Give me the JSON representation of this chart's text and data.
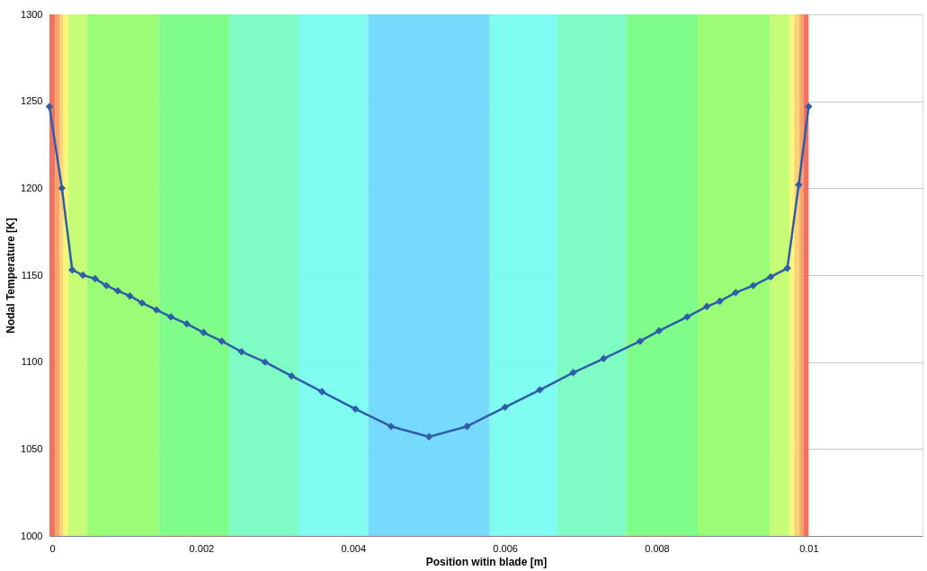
{
  "chart_data": {
    "type": "line",
    "xlabel": "Position witin blade [m]",
    "ylabel": "Nodal Temperature [K]",
    "x": [
      0,
      0.000164,
      0.0003,
      0.00044,
      0.0006,
      0.00075,
      0.0009,
      0.00106,
      0.00122,
      0.00141,
      0.0016,
      0.00181,
      0.00203,
      0.00227,
      0.00253,
      0.00284,
      0.00319,
      0.00359,
      0.00403,
      0.0045,
      0.005,
      0.0055,
      0.006,
      0.00646,
      0.0069,
      0.0073,
      0.00778,
      0.00803,
      0.0084,
      0.00866,
      0.00883,
      0.00904,
      0.00927,
      0.0095,
      0.00972,
      0.00987,
      0.01
    ],
    "series": [
      {
        "color": "#2e5ea8",
        "values": [
          1247,
          1200,
          1153,
          1150,
          1148,
          1144,
          1141,
          1138,
          1134,
          1130,
          1126,
          1122,
          1117,
          1112,
          1106,
          1100,
          1092,
          1083,
          1073,
          1063,
          1057,
          1063,
          1074,
          1084,
          1094,
          1102,
          1112,
          1118,
          1126,
          1132,
          1135,
          1140,
          1144,
          1149,
          1154,
          1202,
          1247
        ]
      }
    ],
    "xlim": [
      0,
      0.0115
    ],
    "xticks": [
      {
        "value": 0,
        "label": "0"
      },
      0.002,
      0.004,
      0.006,
      0.008,
      0.01
    ],
    "ylim": [
      1000,
      1300
    ],
    "yticks": [
      1000,
      1050,
      1100,
      1150,
      1200,
      1250,
      1300
    ],
    "grid": "y",
    "marker": "diamond",
    "line_style": "solid",
    "bands": [
      {
        "axis": "x",
        "from": 0,
        "to": 7.4e-05,
        "color": "#f06a5a"
      },
      {
        "axis": "x",
        "from": 7.4e-05,
        "to": 0.000136,
        "color": "#f8a060"
      },
      {
        "axis": "x",
        "from": 0.000136,
        "to": 0.000185,
        "color": "#fcd070"
      },
      {
        "axis": "x",
        "from": 0.000185,
        "to": 0.000247,
        "color": "#f8f870"
      },
      {
        "axis": "x",
        "from": 0.000247,
        "to": 0.000494,
        "color": "#c4fc70"
      },
      {
        "axis": "x",
        "from": 0.000494,
        "to": 0.00144,
        "color": "#96fc6e"
      },
      {
        "axis": "x",
        "from": 0.00144,
        "to": 0.00237,
        "color": "#78fc84"
      },
      {
        "axis": "x",
        "from": 0.00237,
        "to": 0.00328,
        "color": "#78fcc0"
      },
      {
        "axis": "x",
        "from": 0.00328,
        "to": 0.0042,
        "color": "#78fcee"
      },
      {
        "axis": "x",
        "from": 0.0042,
        "to": 0.0058,
        "color": "#70d8fc"
      },
      {
        "axis": "x",
        "from": 0.0058,
        "to": 0.00669,
        "color": "#78fcee"
      },
      {
        "axis": "x",
        "from": 0.00669,
        "to": 0.0076,
        "color": "#78fcc0"
      },
      {
        "axis": "x",
        "from": 0.0076,
        "to": 0.00854,
        "color": "#78fc84"
      },
      {
        "axis": "x",
        "from": 0.00854,
        "to": 0.00949,
        "color": "#96fc6e"
      },
      {
        "axis": "x",
        "from": 0.00949,
        "to": 0.00975,
        "color": "#c4fc70"
      },
      {
        "axis": "x",
        "from": 0.00975,
        "to": 0.00981,
        "color": "#f8f870"
      },
      {
        "axis": "x",
        "from": 0.00981,
        "to": 0.00988,
        "color": "#fcd070"
      },
      {
        "axis": "x",
        "from": 0.00988,
        "to": 0.00993,
        "color": "#f8a060"
      },
      {
        "axis": "x",
        "from": 0.00993,
        "to": 0.01,
        "color": "#f06a5a"
      }
    ]
  }
}
